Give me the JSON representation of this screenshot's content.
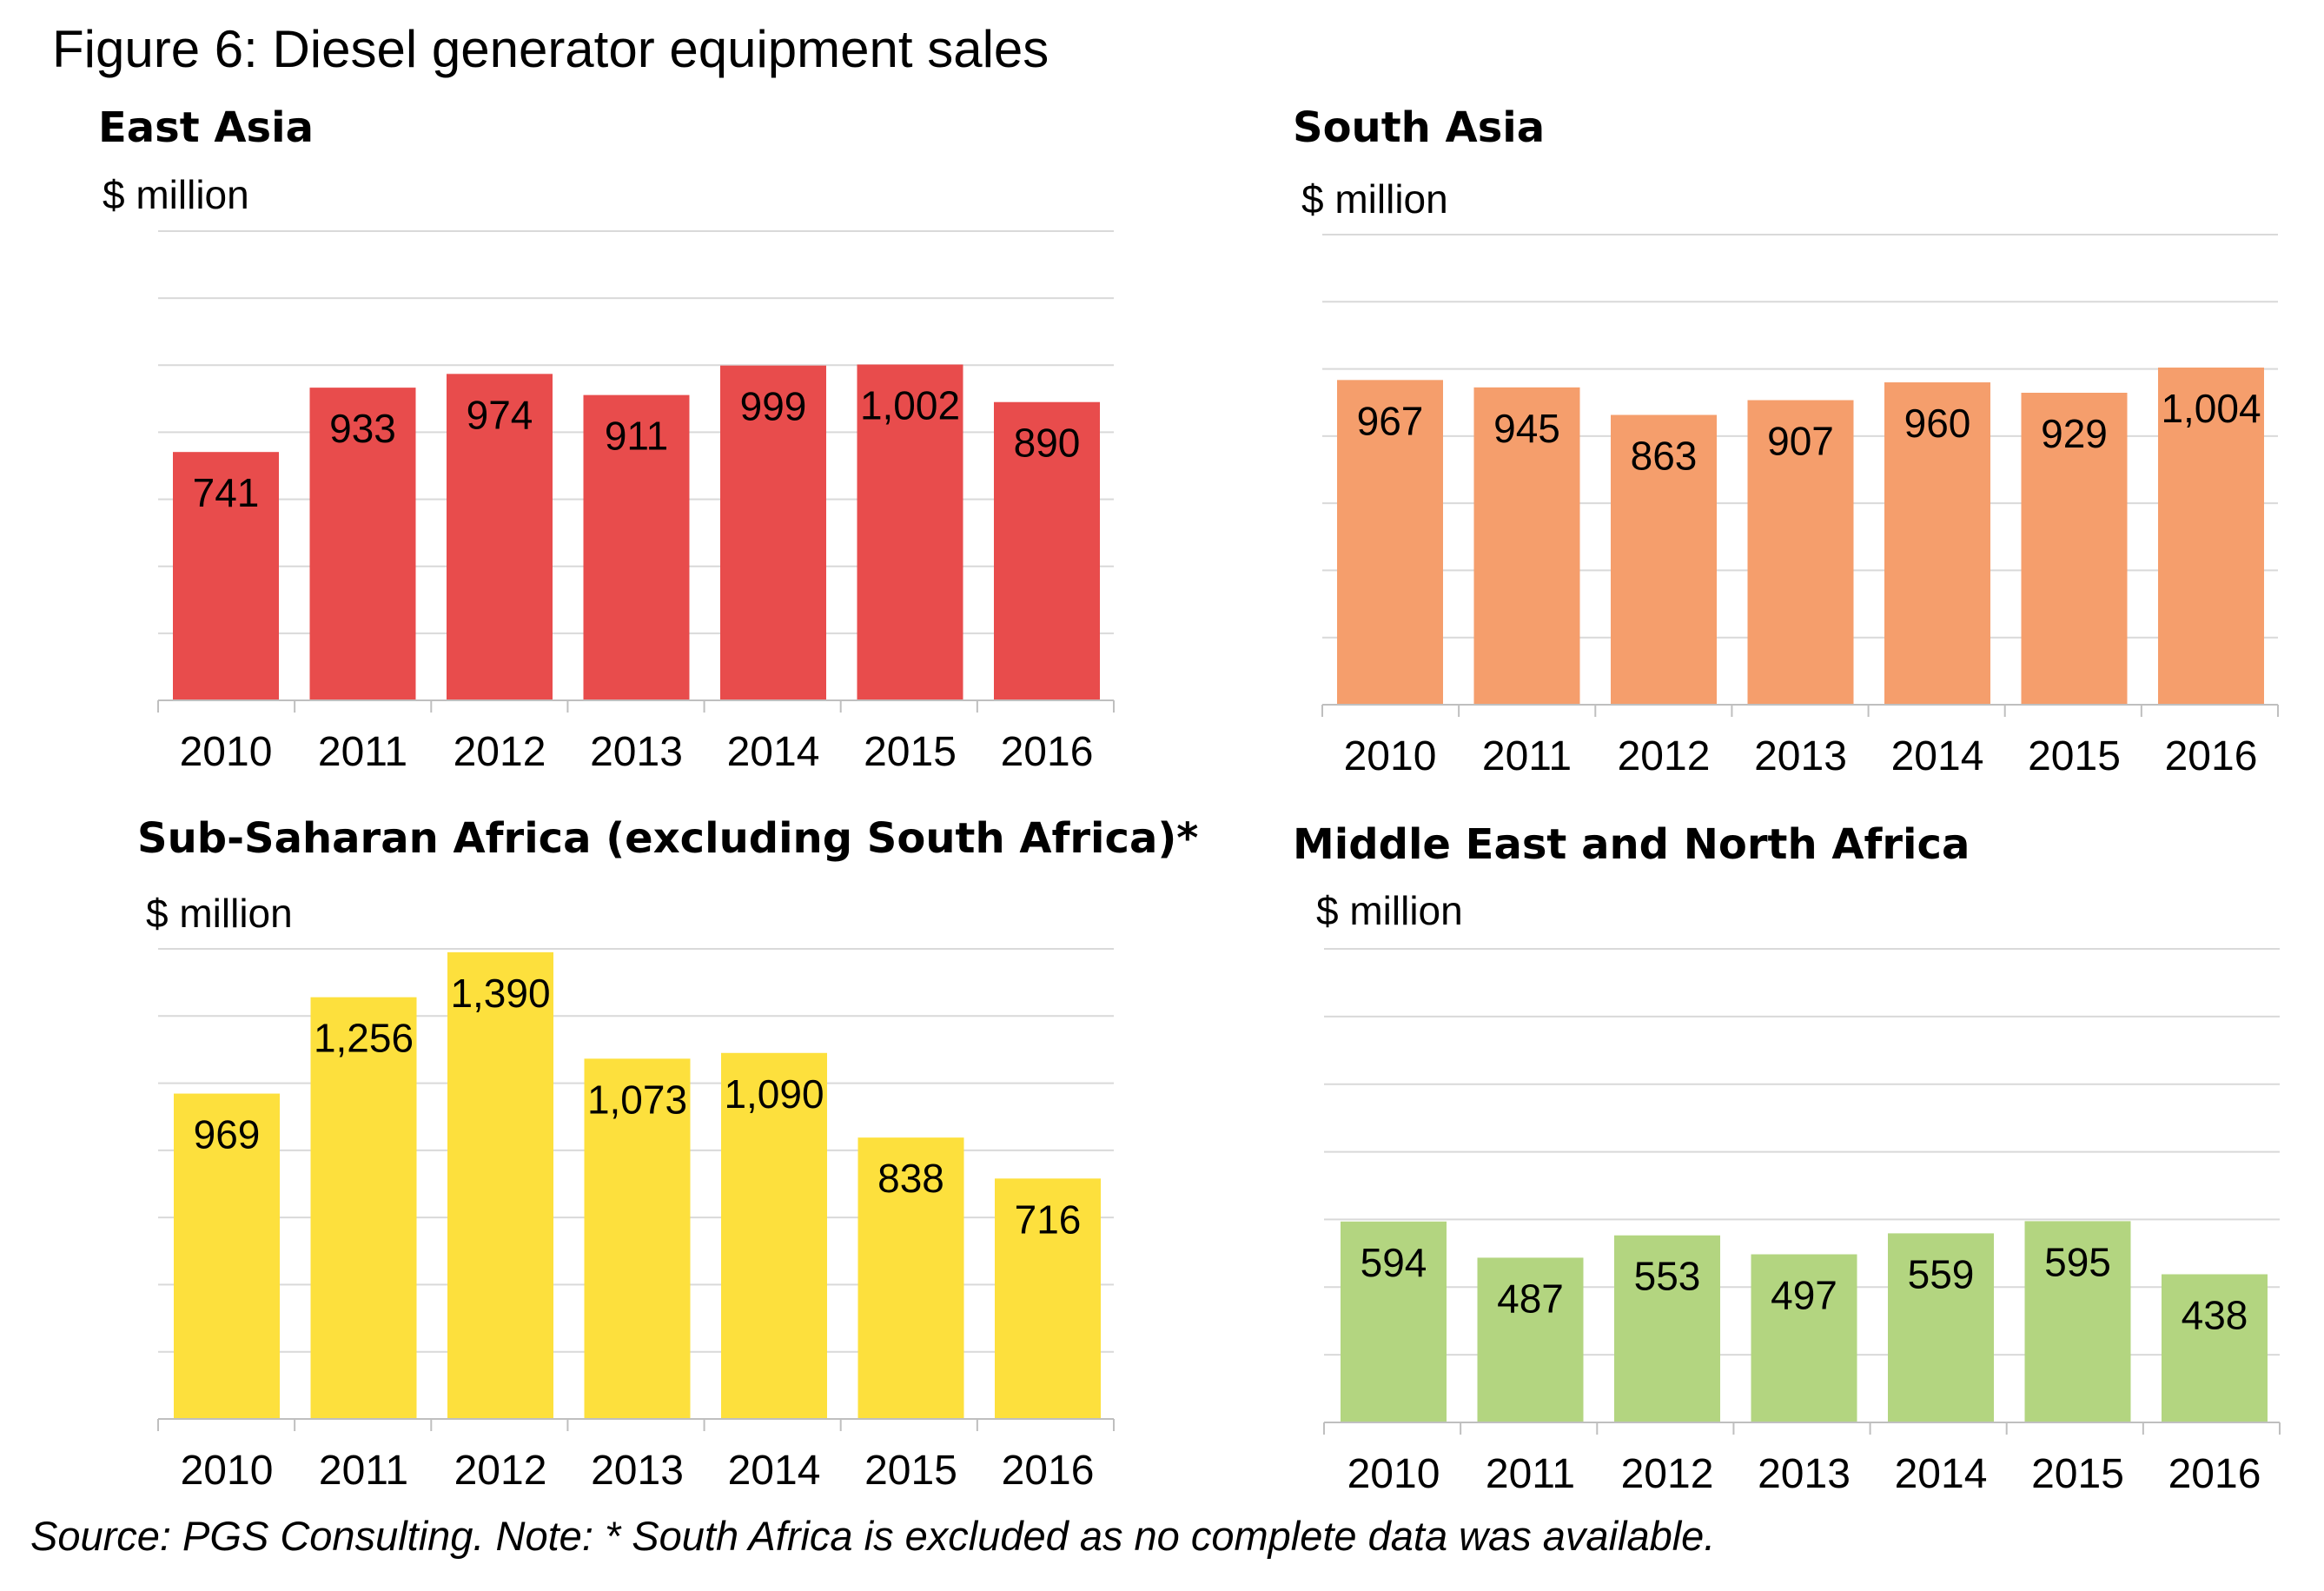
{
  "title": "Figure 6: Diesel generator equipment sales",
  "source_note": "Source: PGS Consulting. Note: * South Africa is excluded as no complete data was available.",
  "chart_data": [
    {
      "type": "bar",
      "title": "East Asia",
      "ylabel": "$ million",
      "categories": [
        "2010",
        "2011",
        "2012",
        "2013",
        "2014",
        "2015",
        "2016"
      ],
      "values": [
        741,
        933,
        974,
        911,
        999,
        1002,
        890
      ],
      "value_labels": [
        "741",
        "933",
        "974",
        "911",
        "999",
        "1,002",
        "890"
      ],
      "ylim": [
        0,
        1400
      ],
      "grid": true,
      "color": "#e84c4c"
    },
    {
      "type": "bar",
      "title": "South Asia",
      "ylabel": "$ million",
      "categories": [
        "2010",
        "2011",
        "2012",
        "2013",
        "2014",
        "2015",
        "2016"
      ],
      "values": [
        967,
        945,
        863,
        907,
        960,
        929,
        1004
      ],
      "value_labels": [
        "967",
        "945",
        "863",
        "907",
        "960",
        "929",
        "1,004"
      ],
      "ylim": [
        0,
        1400
      ],
      "grid": true,
      "color": "#f59e6c"
    },
    {
      "type": "bar",
      "title": "Sub-Saharan Africa (excluding South Africa)*",
      "ylabel": "$ million",
      "categories": [
        "2010",
        "2011",
        "2012",
        "2013",
        "2014",
        "2015",
        "2016"
      ],
      "values": [
        969,
        1256,
        1390,
        1073,
        1090,
        838,
        716
      ],
      "value_labels": [
        "969",
        "1,256",
        "1,390",
        "1,073",
        "1,090",
        "838",
        "716"
      ],
      "ylim": [
        0,
        1400
      ],
      "grid": true,
      "color": "#fde03d"
    },
    {
      "type": "bar",
      "title": "Middle East and North Africa",
      "ylabel": "$ million",
      "categories": [
        "2010",
        "2011",
        "2012",
        "2013",
        "2014",
        "2015",
        "2016"
      ],
      "values": [
        594,
        487,
        553,
        497,
        559,
        595,
        438
      ],
      "value_labels": [
        "594",
        "487",
        "553",
        "497",
        "559",
        "595",
        "438"
      ],
      "ylim": [
        0,
        1400
      ],
      "grid": true,
      "color": "#b3d580"
    }
  ]
}
